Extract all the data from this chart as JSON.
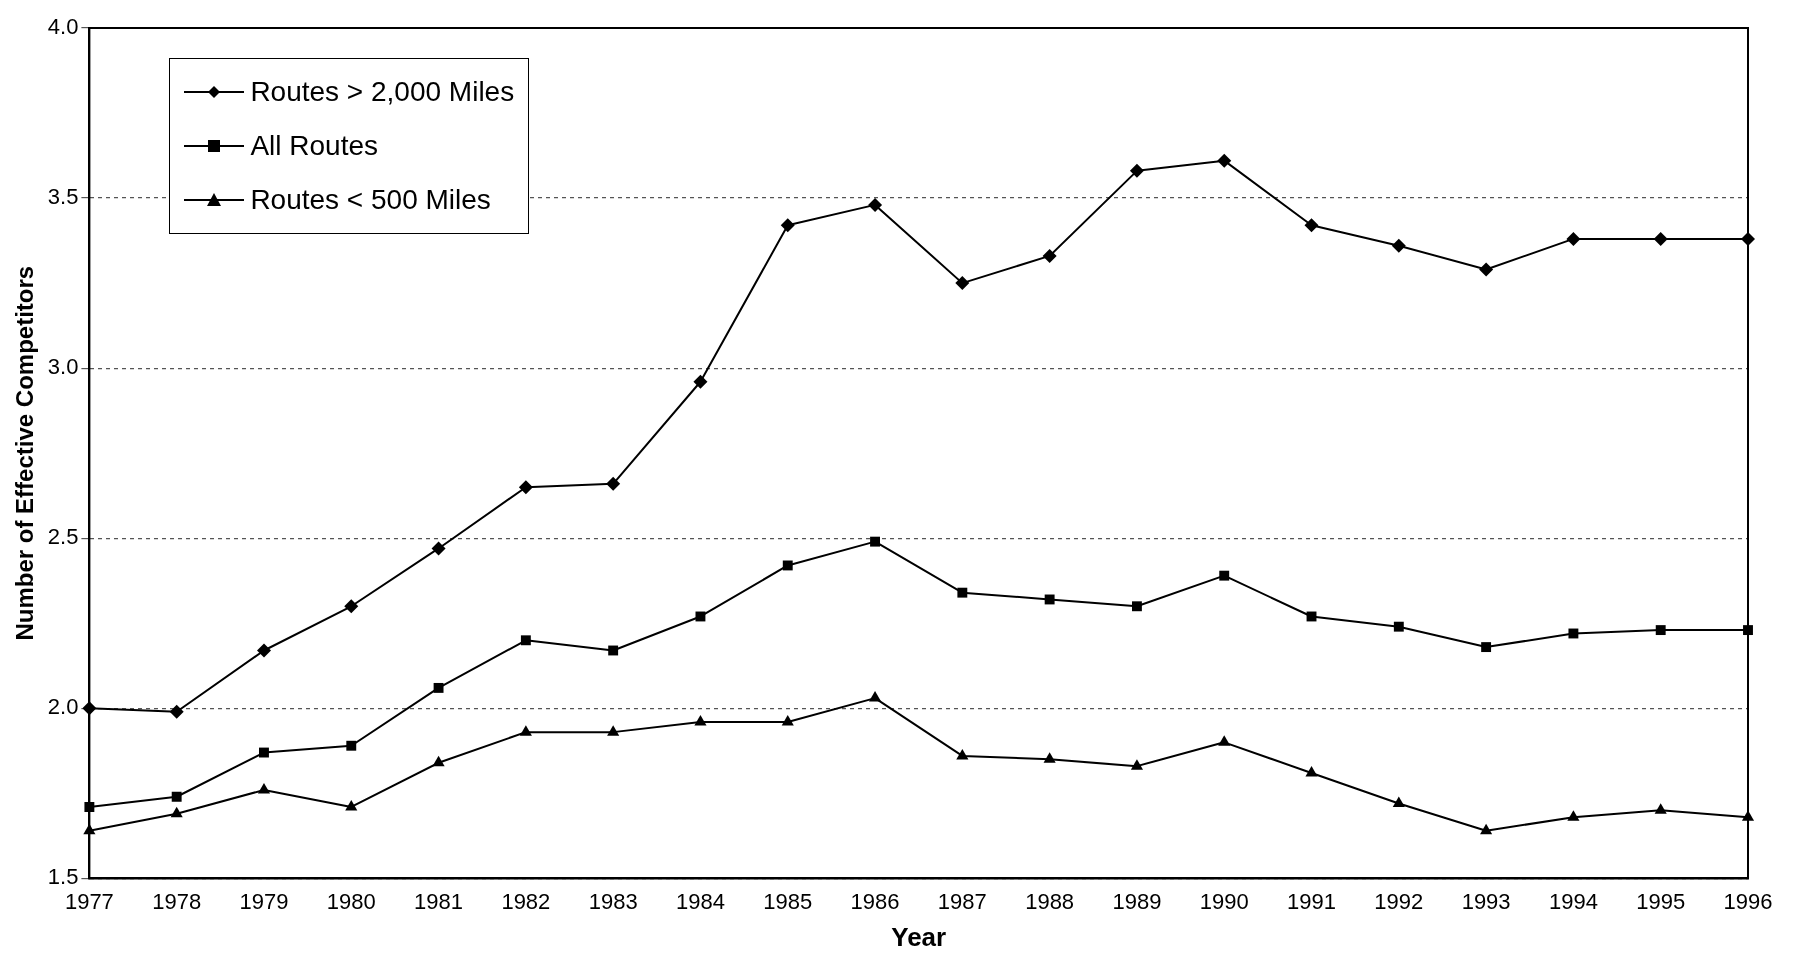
{
  "chart_data": {
    "type": "line",
    "xlabel": "Year",
    "ylabel": "Number of Effective Competitors",
    "categories": [
      "1977",
      "1978",
      "1979",
      "1980",
      "1981",
      "1982",
      "1983",
      "1984",
      "1985",
      "1986",
      "1987",
      "1988",
      "1989",
      "1990",
      "1991",
      "1992",
      "1993",
      "1994",
      "1995",
      "1996"
    ],
    "series": [
      {
        "name": "Routes > 2,000 Miles",
        "color": "#000000",
        "marker": "diamond",
        "values": [
          2.0,
          1.99,
          2.17,
          2.3,
          2.47,
          2.65,
          2.66,
          2.96,
          3.42,
          3.48,
          3.25,
          3.33,
          3.58,
          3.61,
          3.42,
          3.36,
          3.29,
          3.38,
          3.38,
          3.38
        ]
      },
      {
        "name": "All Routes",
        "color": "#000000",
        "marker": "square",
        "values": [
          1.71,
          1.74,
          1.87,
          1.89,
          2.06,
          2.2,
          2.17,
          2.27,
          2.42,
          2.49,
          2.34,
          2.32,
          2.3,
          2.39,
          2.27,
          2.24,
          2.18,
          2.22,
          2.23,
          2.23
        ]
      },
      {
        "name": "Routes < 500 Miles",
        "color": "#000000",
        "marker": "triangle",
        "values": [
          1.64,
          1.69,
          1.76,
          1.71,
          1.84,
          1.93,
          1.93,
          1.96,
          1.96,
          2.03,
          1.86,
          1.85,
          1.83,
          1.9,
          1.81,
          1.72,
          1.64,
          1.68,
          1.7,
          1.68
        ]
      }
    ],
    "ylim": [
      1.5,
      4.0
    ],
    "yticks": [
      {
        "value": 1.5,
        "label": "1.5"
      },
      {
        "value": 2.0,
        "label": "2.0"
      },
      {
        "value": 2.5,
        "label": "2.5"
      },
      {
        "value": 3.0,
        "label": "3.0"
      },
      {
        "value": 3.5,
        "label": "3.5"
      },
      {
        "value": 4.0,
        "label": "4.0"
      }
    ],
    "grid": "y",
    "legend": "top left",
    "line_style": "solid"
  }
}
